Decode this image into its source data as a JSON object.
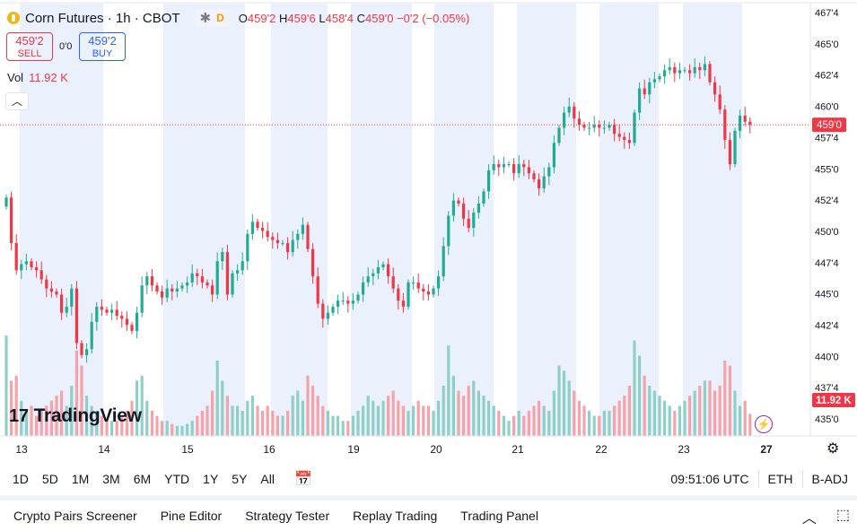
{
  "header": {
    "symbol_title": "Corn Futures · 1h · CBOT",
    "badge_icon": "asterisk-icon",
    "badge_letter": "D",
    "ohlc": {
      "o_label": "O",
      "o": "459'2",
      "h_label": "H",
      "h": "459'6",
      "l_label": "L",
      "l": "458'4",
      "c_label": "C",
      "c": "459'0",
      "change": "−0'2 (−0.05%)"
    }
  },
  "trade": {
    "sell_price": "459'2",
    "sell_label": "SELL",
    "spread": "0'0",
    "buy_price": "459'2",
    "buy_label": "BUY"
  },
  "volume": {
    "label": "Vol",
    "value": "11.92 K"
  },
  "logo": "TradingView",
  "toolbar": {
    "timeframes": [
      "1D",
      "5D",
      "1M",
      "3M",
      "6M",
      "YTD",
      "1Y",
      "5Y",
      "All"
    ],
    "clock": "09:51:06 UTC",
    "session": "ETH",
    "adjust": "B-ADJ"
  },
  "bottom_tabs": [
    "Crypto Pairs Screener",
    "Pine Editor",
    "Strategy Tester",
    "Replay Trading",
    "Trading Panel"
  ],
  "colors": {
    "up": "#22ab94",
    "down": "#f23645",
    "up_vol": "#8fd0c6",
    "down_vol": "#f5a3a9",
    "session": "#ebf0fd",
    "price_tag": "#f23645"
  },
  "chart_data": {
    "type": "candlestick",
    "price_scale": [
      "467'4",
      "465'0",
      "462'4",
      "460'0",
      "457'4",
      "455'0",
      "452'4",
      "450'0",
      "447'4",
      "445'0",
      "442'4",
      "440'0",
      "437'4",
      "435'0"
    ],
    "ylim": [
      434.75,
      468.25
    ],
    "time_labels": [
      "13",
      "14",
      "15",
      "16",
      "19",
      "20",
      "21",
      "22",
      "23",
      "27"
    ],
    "last_price": "459'0",
    "last_volume": "11.92 K",
    "closes": [
      453.0,
      449.25,
      447.0,
      447.5,
      447.75,
      447.25,
      447.0,
      446.25,
      445.5,
      445.25,
      445.0,
      443.5,
      444.0,
      445.5,
      441.0,
      440.0,
      440.5,
      442.75,
      444.0,
      443.75,
      443.5,
      443.75,
      443.25,
      443.0,
      442.5,
      442.0,
      443.5,
      445.75,
      446.5,
      445.75,
      445.25,
      444.75,
      445.5,
      445.25,
      445.5,
      445.75,
      446.0,
      446.75,
      446.5,
      446.0,
      445.75,
      445.0,
      447.75,
      448.5,
      445.0,
      446.75,
      447.0,
      447.75,
      450.0,
      451.0,
      450.5,
      450.25,
      449.75,
      449.5,
      449.25,
      449.25,
      448.5,
      449.5,
      450.0,
      450.75,
      448.75,
      446.5,
      444.25,
      443.0,
      443.5,
      444.0,
      444.5,
      444.5,
      444.25,
      444.5,
      445.0,
      446.0,
      446.5,
      446.75,
      447.25,
      447.5,
      446.5,
      445.5,
      444.5,
      444.0,
      446.0,
      446.0,
      445.5,
      445.25,
      445.0,
      445.5,
      446.5,
      449.0,
      451.5,
      452.75,
      452.5,
      451.25,
      450.5,
      451.75,
      452.5,
      453.5,
      455.25,
      455.75,
      455.5,
      455.75,
      455.75,
      455.0,
      455.75,
      455.5,
      455.0,
      454.5,
      453.75,
      454.75,
      455.5,
      457.5,
      458.75,
      460.0,
      460.5,
      459.5,
      459.0,
      458.75,
      458.75,
      459.0,
      458.75,
      458.75,
      459.0,
      458.25,
      458.0,
      457.75,
      457.5,
      460.0,
      462.0,
      461.5,
      462.5,
      462.75,
      463.0,
      463.5,
      463.75,
      463.25,
      463.5,
      463.5,
      463.25,
      463.75,
      463.5,
      464.0,
      462.5,
      461.5,
      460.25,
      457.75,
      455.75,
      458.5,
      459.75,
      459.25,
      459.0
    ],
    "volume_relative": [
      1.0,
      0.55,
      0.6,
      0.35,
      0.25,
      0.3,
      0.2,
      0.25,
      0.3,
      0.35,
      0.4,
      0.45,
      0.3,
      0.5,
      0.85,
      0.7,
      0.4,
      0.3,
      0.25,
      0.2,
      0.18,
      0.15,
      0.15,
      0.2,
      0.25,
      0.35,
      0.55,
      0.6,
      0.35,
      0.25,
      0.2,
      0.15,
      0.15,
      0.12,
      0.1,
      0.1,
      0.12,
      0.15,
      0.2,
      0.25,
      0.3,
      0.45,
      0.75,
      0.55,
      0.4,
      0.3,
      0.3,
      0.25,
      0.35,
      0.4,
      0.3,
      0.25,
      0.3,
      0.25,
      0.2,
      0.2,
      0.25,
      0.4,
      0.45,
      0.35,
      0.6,
      0.5,
      0.4,
      0.3,
      0.25,
      0.2,
      0.2,
      0.15,
      0.15,
      0.2,
      0.25,
      0.3,
      0.4,
      0.35,
      0.3,
      0.35,
      0.4,
      0.45,
      0.35,
      0.3,
      0.25,
      0.3,
      0.35,
      0.3,
      0.3,
      0.25,
      0.35,
      0.5,
      0.9,
      0.6,
      0.45,
      0.4,
      0.5,
      0.55,
      0.45,
      0.4,
      0.35,
      0.3,
      0.25,
      0.2,
      0.15,
      0.2,
      0.25,
      0.2,
      0.25,
      0.3,
      0.35,
      0.3,
      0.25,
      0.45,
      0.7,
      0.65,
      0.55,
      0.45,
      0.35,
      0.3,
      0.25,
      0.2,
      0.2,
      0.25,
      0.25,
      0.3,
      0.35,
      0.4,
      0.5,
      0.95,
      0.8,
      0.6,
      0.5,
      0.45,
      0.4,
      0.35,
      0.3,
      0.25,
      0.3,
      0.35,
      0.4,
      0.45,
      0.5,
      0.55,
      0.55,
      0.45,
      0.5,
      0.75,
      0.7,
      0.45,
      0.3,
      0.35,
      0.22
    ]
  }
}
